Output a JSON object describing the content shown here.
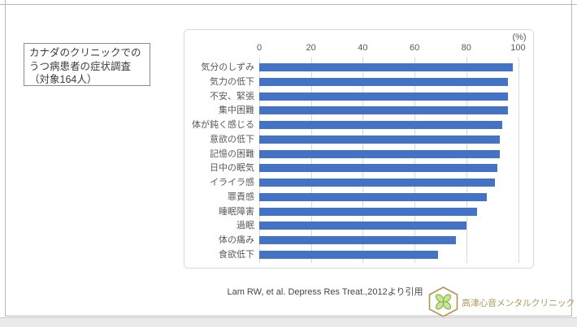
{
  "info_box": {
    "lines": [
      "カナダのクリニックでの",
      "うつ病患者の症状調査",
      "（対象164人）"
    ]
  },
  "chart_data": {
    "type": "bar",
    "orientation": "horizontal",
    "title": "",
    "unit_label": "(%)",
    "categories": [
      "気分のしずみ",
      "気力の低下",
      "不安、緊張",
      "集中困難",
      "体が鈍く感じる",
      "意欲の低下",
      "記憶の困難",
      "日中の眠気",
      "イライラ感",
      "罪責感",
      "睡眠障害",
      "過眠",
      "体の痛み",
      "食欲低下"
    ],
    "values": [
      98,
      96,
      96,
      96,
      94,
      93,
      93,
      92,
      91,
      88,
      84,
      80,
      76,
      69
    ],
    "xlim": [
      0,
      100
    ],
    "xticks": [
      0,
      20,
      40,
      60,
      80,
      100
    ],
    "grid": true,
    "legend": false,
    "bar_color": "#4472c4",
    "gridline_color": "#d9d9d9",
    "label_color": "#595959"
  },
  "citation": "Lam RW, et al. Depress Res Treat.,2012より引用",
  "logo": {
    "clinic_name": "高津心音メンタルクリニック",
    "gold_color": "#b09550",
    "leaf_light": "#cde39b",
    "leaf_green": "#86b946"
  }
}
